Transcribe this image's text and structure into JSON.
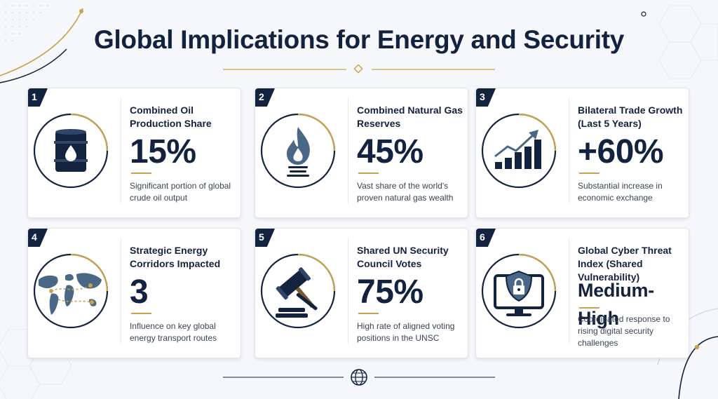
{
  "title": "Global Implications for Energy and Security",
  "colors": {
    "navy": "#13223f",
    "gold": "#c8a24c",
    "steel": "#4a6886",
    "card_bg": "#ffffff",
    "page_bg": "#f6f7fa"
  },
  "cards": [
    {
      "number": "1",
      "label": "Combined Oil Production Share",
      "value": "15%",
      "description": "Significant portion of global crude oil output",
      "icon": "oil-barrel-icon"
    },
    {
      "number": "2",
      "label": "Combined Natural Gas Reserves",
      "value": "45%",
      "description": "Vast share of the world's proven natural gas wealth",
      "icon": "gas-flame-icon"
    },
    {
      "number": "3",
      "label": "Bilateral Trade Growth (Last 5 Years)",
      "value": "+60%",
      "description": "Substantial increase in economic exchange",
      "icon": "growth-chart-icon"
    },
    {
      "number": "4",
      "label": "Strategic Energy Corridors Impacted",
      "value": "3",
      "description": "Influence on key global energy transport routes",
      "icon": "world-map-icon"
    },
    {
      "number": "5",
      "label": "Shared UN Security Council Votes",
      "value": "75%",
      "description": "High rate of aligned voting positions in the UNSC",
      "icon": "gavel-icon"
    },
    {
      "number": "6",
      "label": "Global Cyber Threat Index (Shared Vulnerability)",
      "value": "Medium-High",
      "description": "Coordinated response to rising digital security challenges",
      "icon": "shield-lock-monitor-icon"
    }
  ],
  "footer": {
    "icon": "globe-icon"
  }
}
